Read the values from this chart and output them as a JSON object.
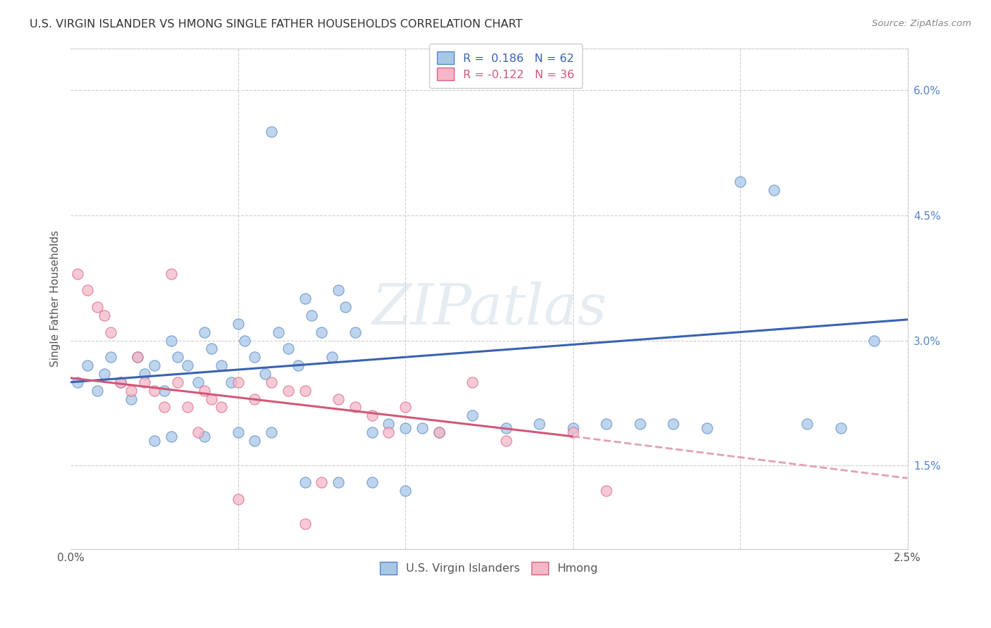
{
  "title": "U.S. VIRGIN ISLANDER VS HMONG SINGLE FATHER HOUSEHOLDS CORRELATION CHART",
  "source": "Source: ZipAtlas.com",
  "ylabel": "Single Father Households",
  "xmin": 0.0,
  "xmax": 0.025,
  "ymin": 0.005,
  "ymax": 0.065,
  "yticks_shown": [
    0.015,
    0.03,
    0.045,
    0.06
  ],
  "ytick_labels_shown": [
    "1.5%",
    "3.0%",
    "4.5%",
    "6.0%"
  ],
  "xticks": [
    0.0,
    0.005,
    0.01,
    0.015,
    0.02,
    0.025
  ],
  "xtick_labels": [
    "0.0%",
    "",
    "",
    "",
    "",
    "2.5%"
  ],
  "r_blue": 0.186,
  "n_blue": 62,
  "r_pink": -0.122,
  "n_pink": 36,
  "blue_color": "#a8c8e8",
  "pink_color": "#f4b8c8",
  "blue_edge_color": "#5585c5",
  "pink_edge_color": "#d86080",
  "blue_line_color": "#3a62b0",
  "pink_line_color": "#d05878",
  "pink_dash_color": "#e0a0b8",
  "watermark": "ZIPatlas",
  "background_color": "#ffffff",
  "blue_scatter_x": [
    0.0002,
    0.0005,
    0.0008,
    0.001,
    0.0012,
    0.0015,
    0.0018,
    0.002,
    0.0022,
    0.0025,
    0.0028,
    0.003,
    0.0032,
    0.0035,
    0.0038,
    0.004,
    0.0042,
    0.0045,
    0.0048,
    0.005,
    0.0052,
    0.0055,
    0.0058,
    0.006,
    0.0062,
    0.0065,
    0.0068,
    0.007,
    0.0072,
    0.0075,
    0.0078,
    0.008,
    0.0082,
    0.0085,
    0.009,
    0.0095,
    0.01,
    0.0105,
    0.011,
    0.012,
    0.013,
    0.014,
    0.015,
    0.016,
    0.017,
    0.018,
    0.019,
    0.02,
    0.021,
    0.022,
    0.023,
    0.024,
    0.005,
    0.003,
    0.006,
    0.004,
    0.0025,
    0.0055,
    0.007,
    0.008,
    0.009,
    0.01
  ],
  "blue_scatter_y": [
    0.025,
    0.027,
    0.024,
    0.026,
    0.028,
    0.025,
    0.023,
    0.028,
    0.026,
    0.027,
    0.024,
    0.03,
    0.028,
    0.027,
    0.025,
    0.031,
    0.029,
    0.027,
    0.025,
    0.032,
    0.03,
    0.028,
    0.026,
    0.055,
    0.031,
    0.029,
    0.027,
    0.035,
    0.033,
    0.031,
    0.028,
    0.036,
    0.034,
    0.031,
    0.019,
    0.02,
    0.0195,
    0.0195,
    0.019,
    0.021,
    0.0195,
    0.02,
    0.0195,
    0.02,
    0.02,
    0.02,
    0.0195,
    0.049,
    0.048,
    0.02,
    0.0195,
    0.03,
    0.019,
    0.0185,
    0.019,
    0.0185,
    0.018,
    0.018,
    0.013,
    0.013,
    0.013,
    0.012
  ],
  "pink_scatter_x": [
    0.0002,
    0.0005,
    0.0008,
    0.001,
    0.0012,
    0.0015,
    0.0018,
    0.002,
    0.0022,
    0.0025,
    0.0028,
    0.003,
    0.0032,
    0.0035,
    0.0038,
    0.004,
    0.0042,
    0.0045,
    0.005,
    0.0055,
    0.006,
    0.0065,
    0.007,
    0.0075,
    0.008,
    0.0085,
    0.009,
    0.0095,
    0.01,
    0.011,
    0.012,
    0.013,
    0.015,
    0.016,
    0.007,
    0.005
  ],
  "pink_scatter_y": [
    0.038,
    0.036,
    0.034,
    0.033,
    0.031,
    0.025,
    0.024,
    0.028,
    0.025,
    0.024,
    0.022,
    0.038,
    0.025,
    0.022,
    0.019,
    0.024,
    0.023,
    0.022,
    0.025,
    0.023,
    0.025,
    0.024,
    0.024,
    0.013,
    0.023,
    0.022,
    0.021,
    0.019,
    0.022,
    0.019,
    0.025,
    0.018,
    0.019,
    0.012,
    0.008,
    0.011
  ]
}
